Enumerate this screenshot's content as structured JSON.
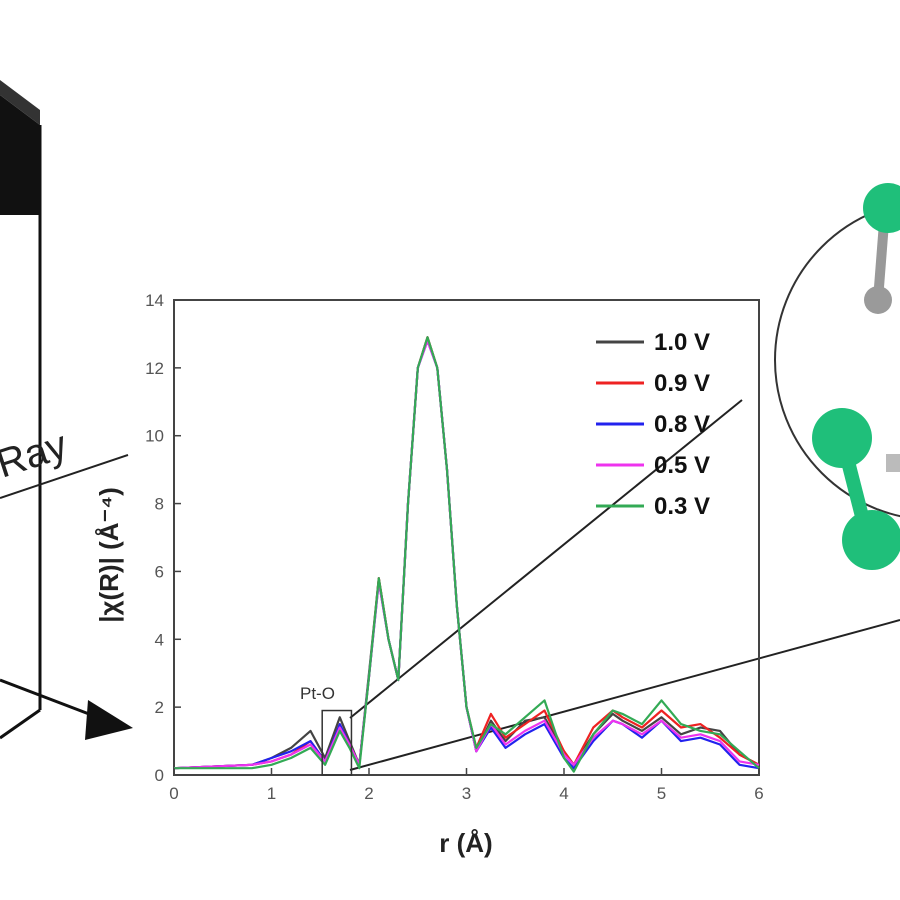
{
  "chart_data": {
    "type": "line",
    "title": "",
    "xlabel": "r (Å)",
    "ylabel": "|χ(R)| (Å⁻⁴)",
    "xlim": [
      0,
      6
    ],
    "ylim": [
      0,
      14
    ],
    "x_ticks": [
      "0",
      "1",
      "2",
      "3",
      "4",
      "5",
      "6"
    ],
    "y_ticks": [
      "0",
      "2",
      "4",
      "6",
      "8",
      "10",
      "12",
      "14"
    ],
    "grid": false,
    "legend_position": "top-right",
    "annotations": [
      {
        "text": "Pt-O",
        "x": 1.6,
        "y": 1.5
      }
    ],
    "series": [
      {
        "name": "1.0 V",
        "color": "#444444",
        "x": [
          0,
          0.8,
          1.0,
          1.2,
          1.4,
          1.55,
          1.7,
          1.8,
          1.9,
          2.0,
          2.1,
          2.2,
          2.3,
          2.4,
          2.5,
          2.6,
          2.7,
          2.8,
          2.9,
          3.0,
          3.1,
          3.25,
          3.4,
          3.6,
          3.8,
          4.0,
          4.1,
          4.3,
          4.5,
          4.6,
          4.8,
          5.0,
          5.2,
          5.4,
          5.6,
          5.8,
          6.0
        ],
        "y": [
          0.2,
          0.3,
          0.5,
          0.8,
          1.3,
          0.5,
          1.7,
          1.0,
          0.3,
          3.0,
          5.8,
          4.0,
          2.8,
          8.0,
          12.0,
          12.9,
          12.0,
          9.0,
          5.0,
          2.0,
          0.7,
          1.6,
          1.0,
          1.6,
          1.7,
          0.7,
          0.3,
          1.2,
          1.8,
          1.6,
          1.3,
          1.7,
          1.2,
          1.4,
          1.3,
          0.6,
          0.3
        ]
      },
      {
        "name": "0.9 V",
        "color": "#ee2222",
        "x": [
          0,
          0.8,
          1.0,
          1.2,
          1.4,
          1.55,
          1.7,
          1.8,
          1.9,
          2.0,
          2.1,
          2.2,
          2.3,
          2.4,
          2.5,
          2.6,
          2.7,
          2.8,
          2.9,
          3.0,
          3.1,
          3.25,
          3.4,
          3.6,
          3.8,
          4.0,
          4.1,
          4.3,
          4.5,
          4.6,
          4.8,
          5.0,
          5.2,
          5.4,
          5.6,
          5.8,
          6.0
        ],
        "y": [
          0.2,
          0.3,
          0.4,
          0.6,
          1.0,
          0.4,
          1.5,
          0.9,
          0.3,
          2.9,
          5.8,
          4.0,
          2.8,
          8.0,
          12.0,
          12.9,
          12.0,
          9.0,
          5.0,
          2.0,
          0.8,
          1.8,
          1.1,
          1.5,
          1.9,
          0.7,
          0.3,
          1.4,
          1.9,
          1.7,
          1.4,
          1.9,
          1.4,
          1.5,
          1.1,
          0.6,
          0.3
        ]
      },
      {
        "name": "0.8 V",
        "color": "#2222ee",
        "x": [
          0,
          0.8,
          1.0,
          1.2,
          1.4,
          1.55,
          1.7,
          1.8,
          1.9,
          2.0,
          2.1,
          2.2,
          2.3,
          2.4,
          2.5,
          2.6,
          2.7,
          2.8,
          2.9,
          3.0,
          3.1,
          3.25,
          3.4,
          3.6,
          3.8,
          4.0,
          4.1,
          4.3,
          4.5,
          4.6,
          4.8,
          5.0,
          5.2,
          5.4,
          5.6,
          5.8,
          6.0
        ],
        "y": [
          0.2,
          0.3,
          0.5,
          0.7,
          1.0,
          0.4,
          1.5,
          0.9,
          0.3,
          2.9,
          5.7,
          4.0,
          2.8,
          8.0,
          12.0,
          12.8,
          12.0,
          9.0,
          5.0,
          2.0,
          0.7,
          1.4,
          0.8,
          1.2,
          1.5,
          0.5,
          0.2,
          1.0,
          1.6,
          1.5,
          1.1,
          1.6,
          1.0,
          1.1,
          0.9,
          0.3,
          0.2
        ]
      },
      {
        "name": "0.5 V",
        "color": "#ee33ee",
        "x": [
          0,
          0.8,
          1.0,
          1.2,
          1.4,
          1.55,
          1.7,
          1.8,
          1.9,
          2.0,
          2.1,
          2.2,
          2.3,
          2.4,
          2.5,
          2.6,
          2.7,
          2.8,
          2.9,
          3.0,
          3.1,
          3.25,
          3.4,
          3.6,
          3.8,
          4.0,
          4.1,
          4.3,
          4.5,
          4.6,
          4.8,
          5.0,
          5.2,
          5.4,
          5.6,
          5.8,
          6.0
        ],
        "y": [
          0.2,
          0.3,
          0.4,
          0.6,
          0.9,
          0.4,
          1.4,
          0.9,
          0.3,
          2.9,
          5.7,
          4.0,
          2.8,
          8.0,
          12.0,
          12.8,
          12.0,
          9.0,
          5.0,
          2.0,
          0.7,
          1.5,
          0.9,
          1.3,
          1.6,
          0.6,
          0.3,
          1.1,
          1.6,
          1.5,
          1.2,
          1.6,
          1.1,
          1.2,
          1.0,
          0.4,
          0.3
        ]
      },
      {
        "name": "0.3 V",
        "color": "#33aa55",
        "x": [
          0,
          0.8,
          1.0,
          1.2,
          1.4,
          1.55,
          1.7,
          1.8,
          1.9,
          2.0,
          2.1,
          2.2,
          2.3,
          2.4,
          2.5,
          2.6,
          2.7,
          2.8,
          2.9,
          3.0,
          3.1,
          3.25,
          3.4,
          3.6,
          3.8,
          4.0,
          4.1,
          4.3,
          4.5,
          4.6,
          4.8,
          5.0,
          5.2,
          5.4,
          5.6,
          5.8,
          6.0
        ],
        "y": [
          0.2,
          0.2,
          0.3,
          0.5,
          0.8,
          0.3,
          1.3,
          0.8,
          0.2,
          2.9,
          5.8,
          4.0,
          2.8,
          8.0,
          12.0,
          12.9,
          12.0,
          9.0,
          5.0,
          2.0,
          0.8,
          1.5,
          1.2,
          1.7,
          2.2,
          0.5,
          0.1,
          1.2,
          1.9,
          1.8,
          1.5,
          2.2,
          1.5,
          1.3,
          1.2,
          0.7,
          0.2
        ]
      }
    ]
  },
  "illustration": {
    "ray_label": "Ray",
    "atom_color": "#1fbf7a",
    "small_atom_color": "#9a9a9a"
  }
}
